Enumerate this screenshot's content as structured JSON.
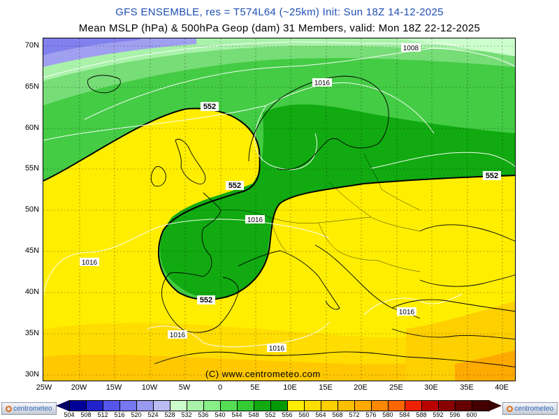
{
  "header": {
    "line1": "GFS ENSEMBLE, res = T574L64 (~25km)    Init: Sun 18Z 14-12-2025",
    "line2": "Mean MSLP (hPa) & 500hPa Geop (dam)    31 Members, valid: Mon 18Z 22-12-2025"
  },
  "axes": {
    "lat_labels": [
      "70N",
      "65N",
      "60N",
      "55N",
      "50N",
      "45N",
      "40N",
      "35N",
      "30N"
    ],
    "lon_labels": [
      "25W",
      "20W",
      "15W",
      "10W",
      "5W",
      "0",
      "5E",
      "10E",
      "15E",
      "20E",
      "25E",
      "30E",
      "35E",
      "40E"
    ]
  },
  "map": {
    "geopotential_contour_labels": [
      "552",
      "552",
      "552",
      "552"
    ],
    "isobar_labels": [
      "1008",
      "1016",
      "1016",
      "1016",
      "1016",
      "1016"
    ],
    "copyright": "(C) www.centrometeo.com"
  },
  "legend": {
    "values": [
      "504",
      "508",
      "512",
      "516",
      "520",
      "524",
      "528",
      "532",
      "536",
      "540",
      "544",
      "548",
      "552",
      "556",
      "560",
      "564",
      "568",
      "572",
      "576",
      "580",
      "584",
      "588",
      "592",
      "596",
      "600"
    ],
    "colors": [
      "#000099",
      "#2222cc",
      "#5555ee",
      "#7777f2",
      "#9999f0",
      "#bbbbf4",
      "#ccffcc",
      "#aaf2aa",
      "#88ee88",
      "#55dd55",
      "#33cc33",
      "#11aa11",
      "#009900",
      "#ffee00",
      "#ffdd00",
      "#ffd000",
      "#ffc000",
      "#ffaa00",
      "#ff8800",
      "#ff6600",
      "#ee2200",
      "#bb0000",
      "#880000",
      "#660000",
      "#440000"
    ],
    "logo_text": "centrometeo"
  }
}
